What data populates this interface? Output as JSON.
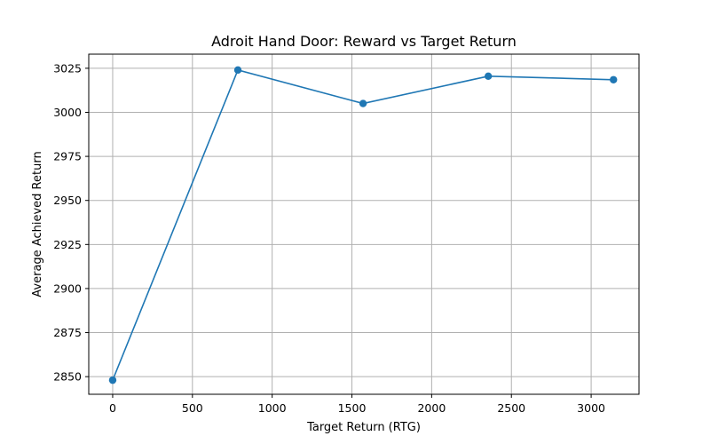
{
  "chart_data": {
    "type": "line",
    "title": "Adroit Hand Door: Reward vs Target Return",
    "xlabel": "Target Return (RTG)",
    "ylabel": "Average Achieved Return",
    "xlim": [
      -150,
      3300
    ],
    "ylim": [
      2840,
      3033
    ],
    "xticks": [
      0,
      500,
      1000,
      1500,
      2000,
      2500,
      3000
    ],
    "yticks": [
      2850,
      2875,
      2900,
      2925,
      2950,
      2975,
      3000,
      3025
    ],
    "grid": true,
    "color": "#1f77b4",
    "marker": "circle",
    "series": [
      {
        "x": [
          0,
          785,
          1570,
          2355,
          3140
        ],
        "y": [
          2848,
          3024,
          3005,
          3020.5,
          3018.5
        ]
      }
    ]
  }
}
